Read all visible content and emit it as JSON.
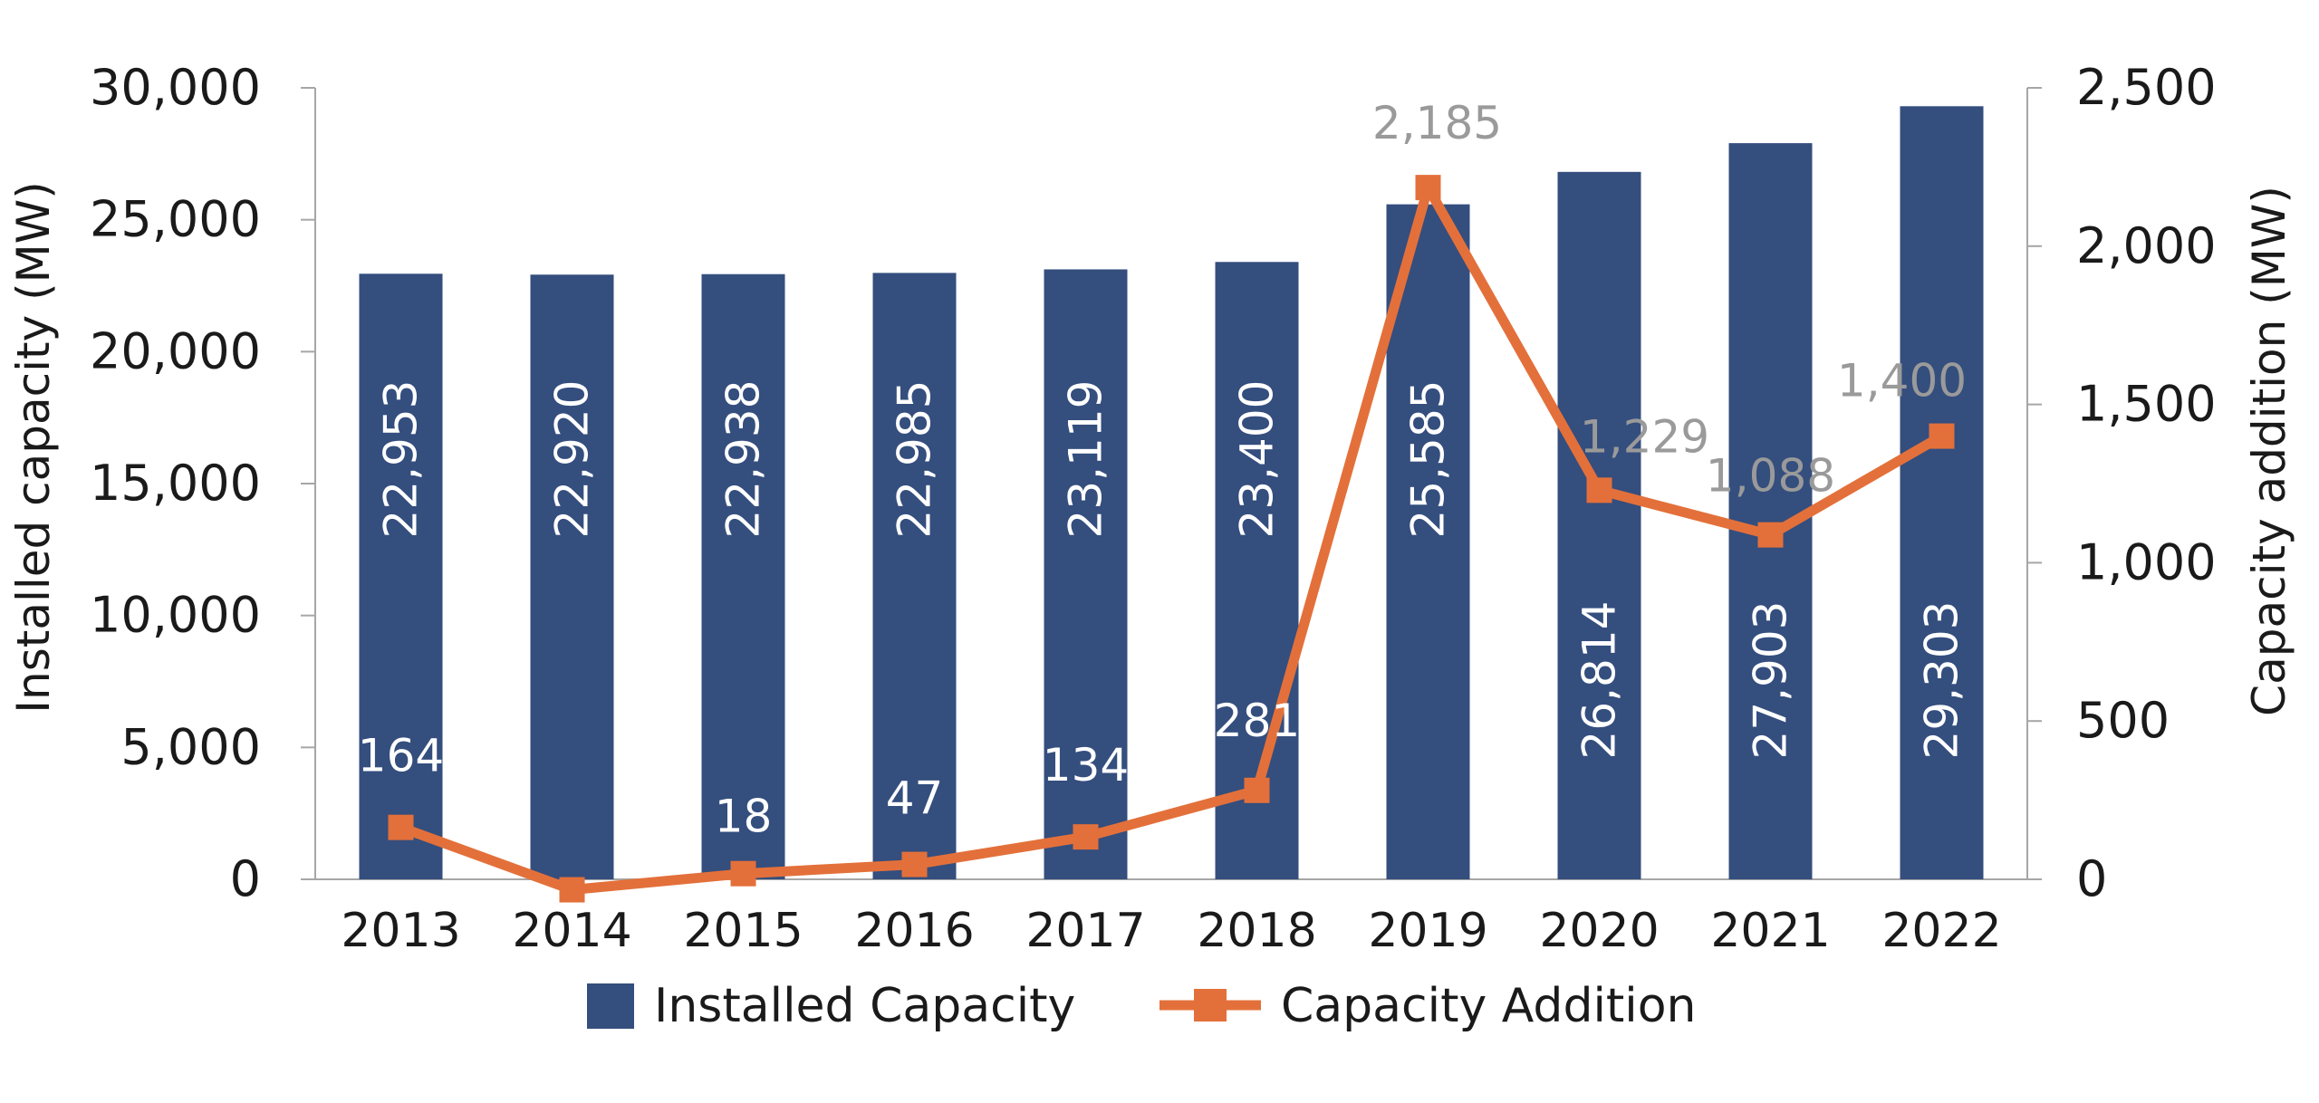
{
  "chart_data": {
    "type": "bar+line",
    "title": "",
    "categories": [
      "2013",
      "2014",
      "2015",
      "2016",
      "2017",
      "2018",
      "2019",
      "2020",
      "2021",
      "2022"
    ],
    "series": [
      {
        "name": "Installed Capacity",
        "type": "bar",
        "axis": "left",
        "color": "#344e7e",
        "values": [
          22953,
          22920,
          22938,
          22985,
          23119,
          23400,
          25585,
          26814,
          27903,
          29303
        ],
        "labels": [
          "22,953",
          "22,920",
          "22,938",
          "22,985",
          "23,119",
          "23,400",
          "25,585",
          "26,814",
          "27,903",
          "29,303"
        ]
      },
      {
        "name": "Capacity Addition",
        "type": "line",
        "axis": "right",
        "color": "#e3703a",
        "values": [
          164,
          -33,
          18,
          47,
          134,
          281,
          2185,
          1229,
          1088,
          1400
        ],
        "labels": [
          "164",
          "",
          "18",
          "47",
          "134",
          "281",
          "2,185",
          "1,229",
          "1,088",
          "1,400"
        ]
      }
    ],
    "y_left": {
      "label": "Installed capacity (MW)",
      "ylim": [
        0,
        30000
      ],
      "ticks": [
        0,
        5000,
        10000,
        15000,
        20000,
        25000,
        30000
      ],
      "tick_labels": [
        "0",
        "5,000",
        "10,000",
        "15,000",
        "20,000",
        "25,000",
        "30,000"
      ]
    },
    "y_right": {
      "label": "Capacity addition (MW)",
      "ylim": [
        0,
        2500
      ],
      "ticks": [
        0,
        500,
        1000,
        1500,
        2000,
        2500
      ],
      "tick_labels": [
        "0",
        "500",
        "1,000",
        "1,500",
        "2,000",
        "2,500"
      ]
    },
    "legend": {
      "position": "bottom",
      "entries": [
        "Installed Capacity",
        "Capacity Addition"
      ]
    },
    "grid": false
  }
}
